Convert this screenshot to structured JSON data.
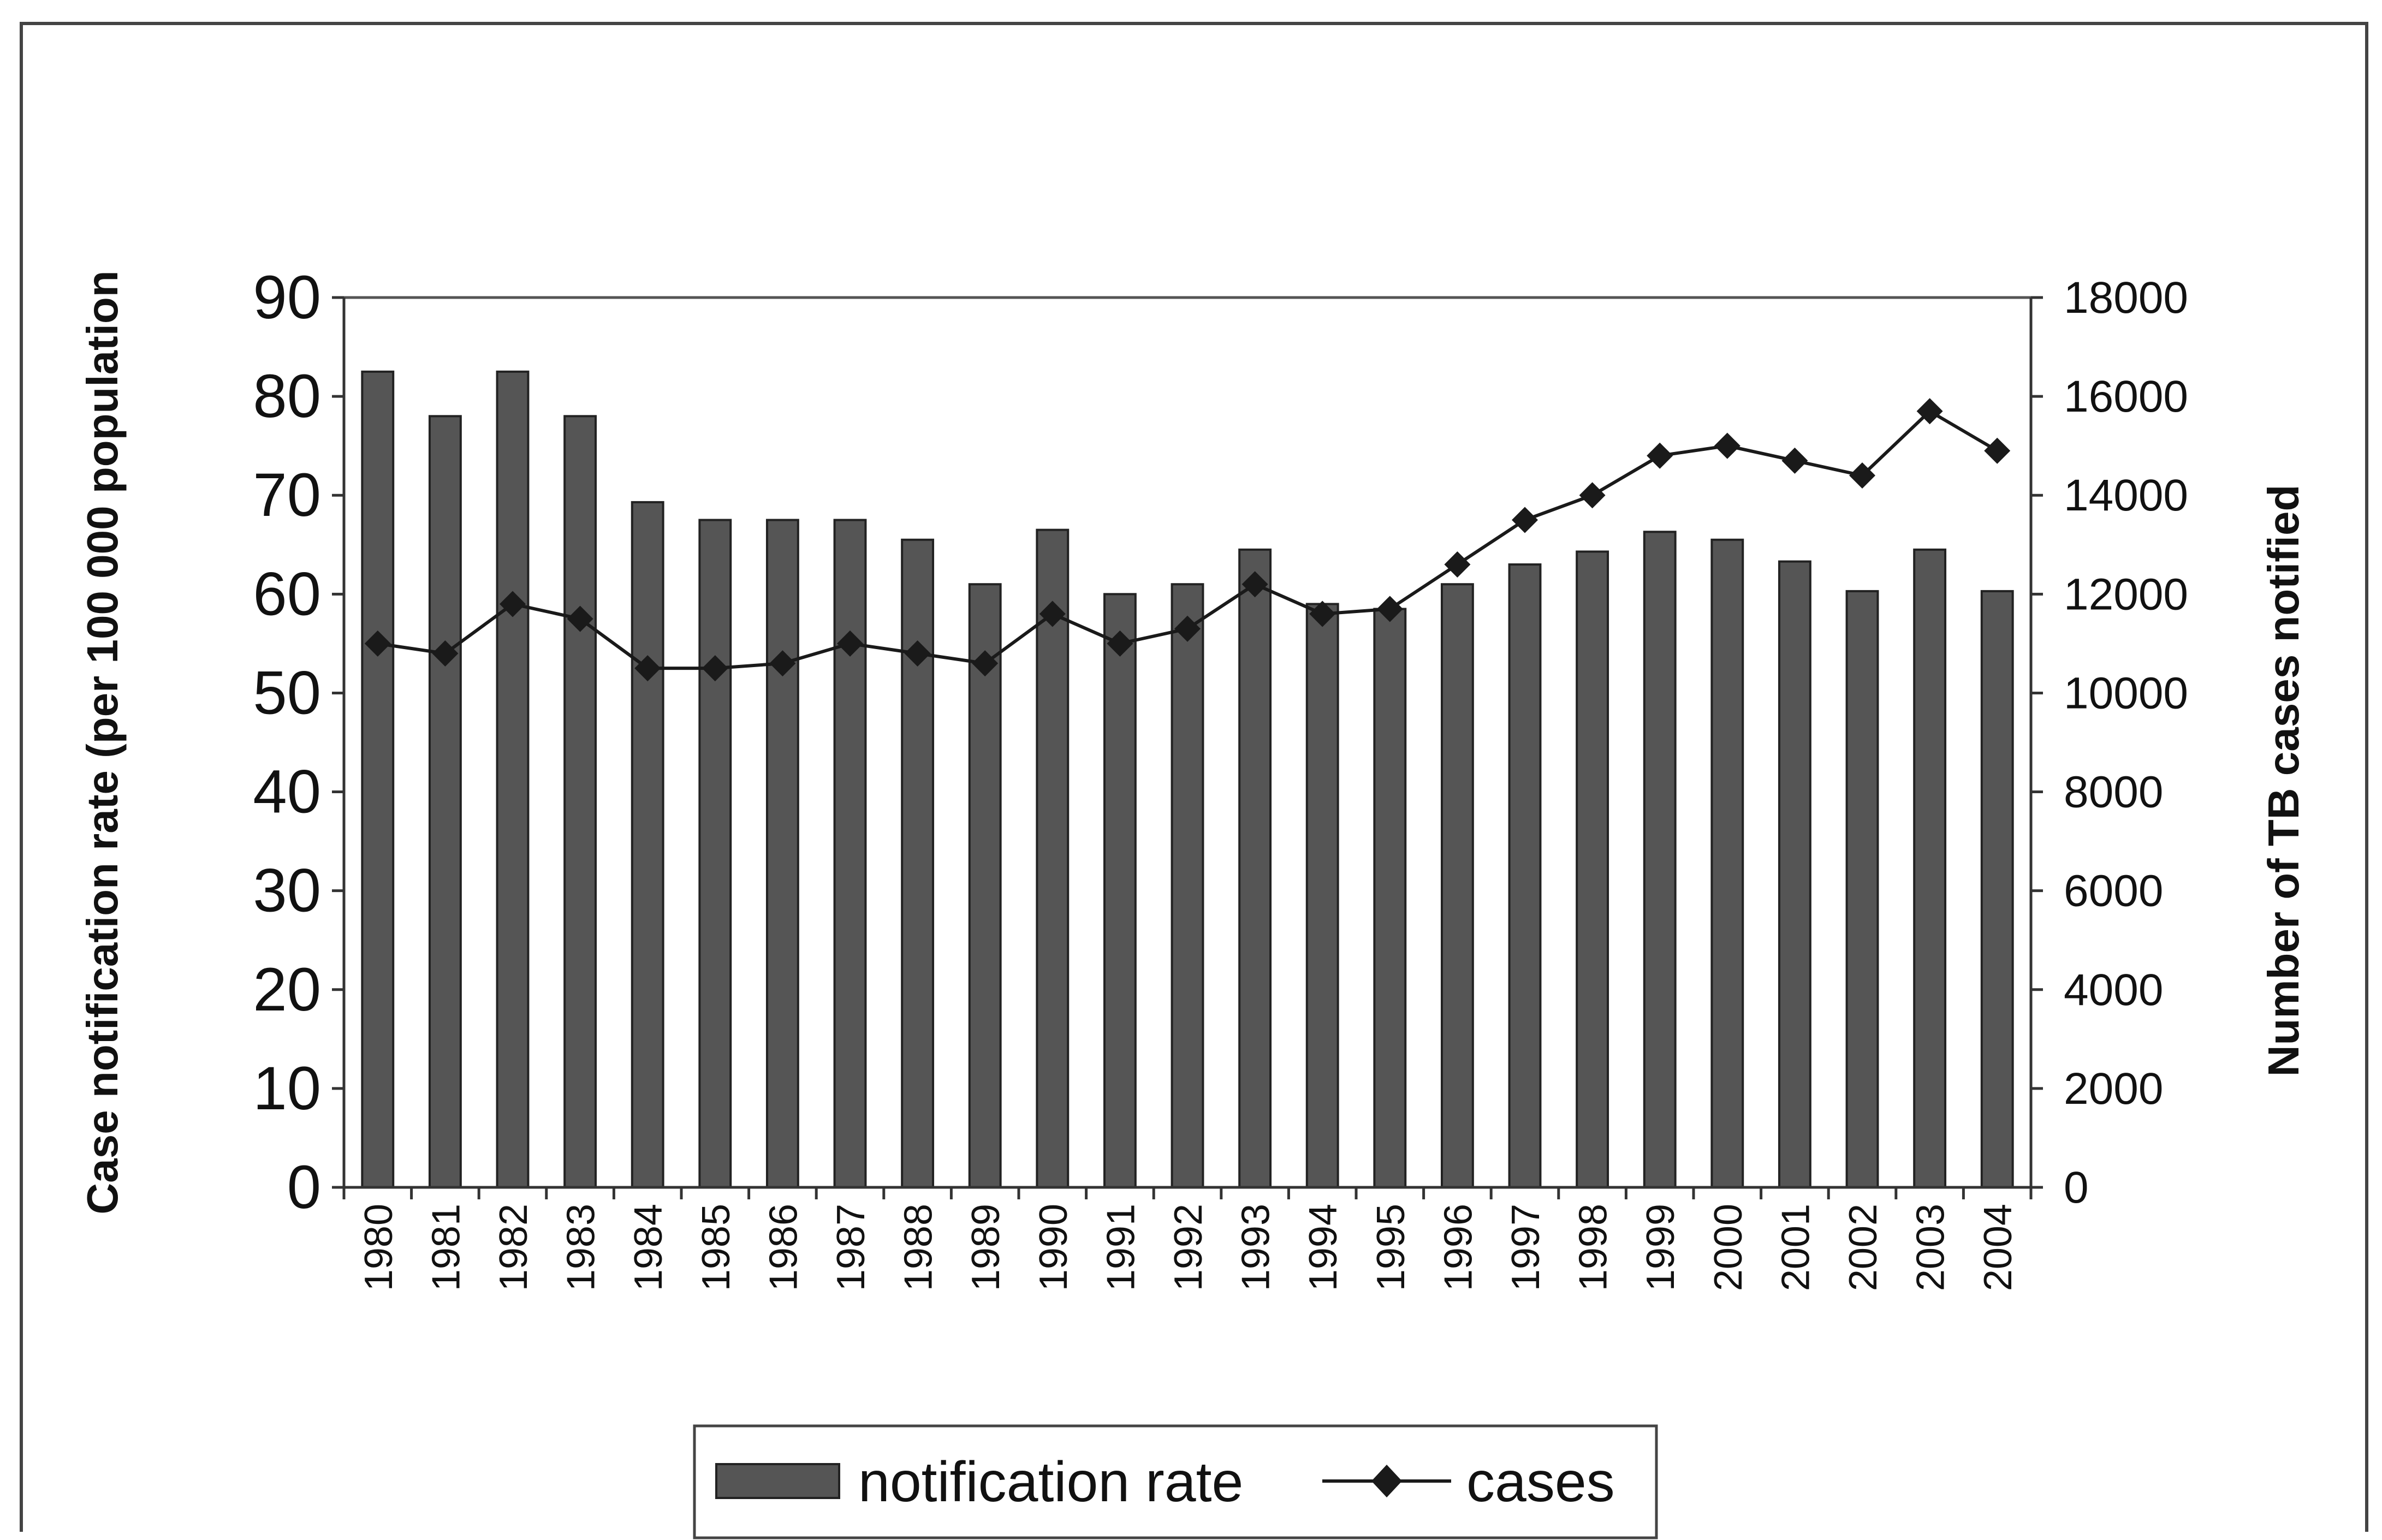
{
  "chart_data": {
    "type": "bar",
    "x_tick_labels": [
      "1980",
      "1981",
      "1982",
      "1983",
      "1984",
      "1985",
      "1986",
      "1987",
      "1988",
      "1989",
      "1990",
      "1991",
      "1992",
      "1993",
      "1994",
      "1995",
      "1996",
      "1997",
      "1998",
      "1999",
      "2000",
      "2001",
      "2002",
      "2003",
      "2004"
    ],
    "series": [
      {
        "name": "notification rate",
        "type": "bar",
        "axis": "left",
        "values": [
          82.5,
          78,
          82.5,
          78,
          69.3,
          67.5,
          67.5,
          67.5,
          65.5,
          61,
          66.5,
          60,
          61,
          64.5,
          59,
          58.5,
          61,
          63,
          64.3,
          66.3,
          65.5,
          63.3,
          60.3,
          64.5,
          60.3
        ],
        "color": "#555555"
      },
      {
        "name": "cases",
        "type": "line",
        "axis": "right",
        "values": [
          11000,
          10800,
          11800,
          11500,
          10500,
          10500,
          10600,
          11000,
          10800,
          10600,
          11600,
          11000,
          11300,
          12200,
          11600,
          11700,
          12600,
          13500,
          14000,
          14800,
          15000,
          14700,
          14400,
          15700,
          14900
        ],
        "marker": "diamond",
        "color": "#1a1a1a"
      }
    ],
    "y_left": {
      "label": "Case notification rate (per 100 000 population",
      "ylim": [
        0,
        90
      ],
      "ticks": [
        "0",
        "10",
        "20",
        "30",
        "40",
        "50",
        "60",
        "70",
        "80",
        "90"
      ]
    },
    "y_right": {
      "label": "Number of TB cases notified",
      "ylim": [
        0,
        18000
      ],
      "ticks": [
        "0",
        "2000",
        "4000",
        "6000",
        "8000",
        "10000",
        "12000",
        "14000",
        "16000",
        "18000"
      ]
    },
    "legend": {
      "position": "bottom-center",
      "items": [
        "notification rate",
        "cases"
      ]
    },
    "grid": false
  }
}
